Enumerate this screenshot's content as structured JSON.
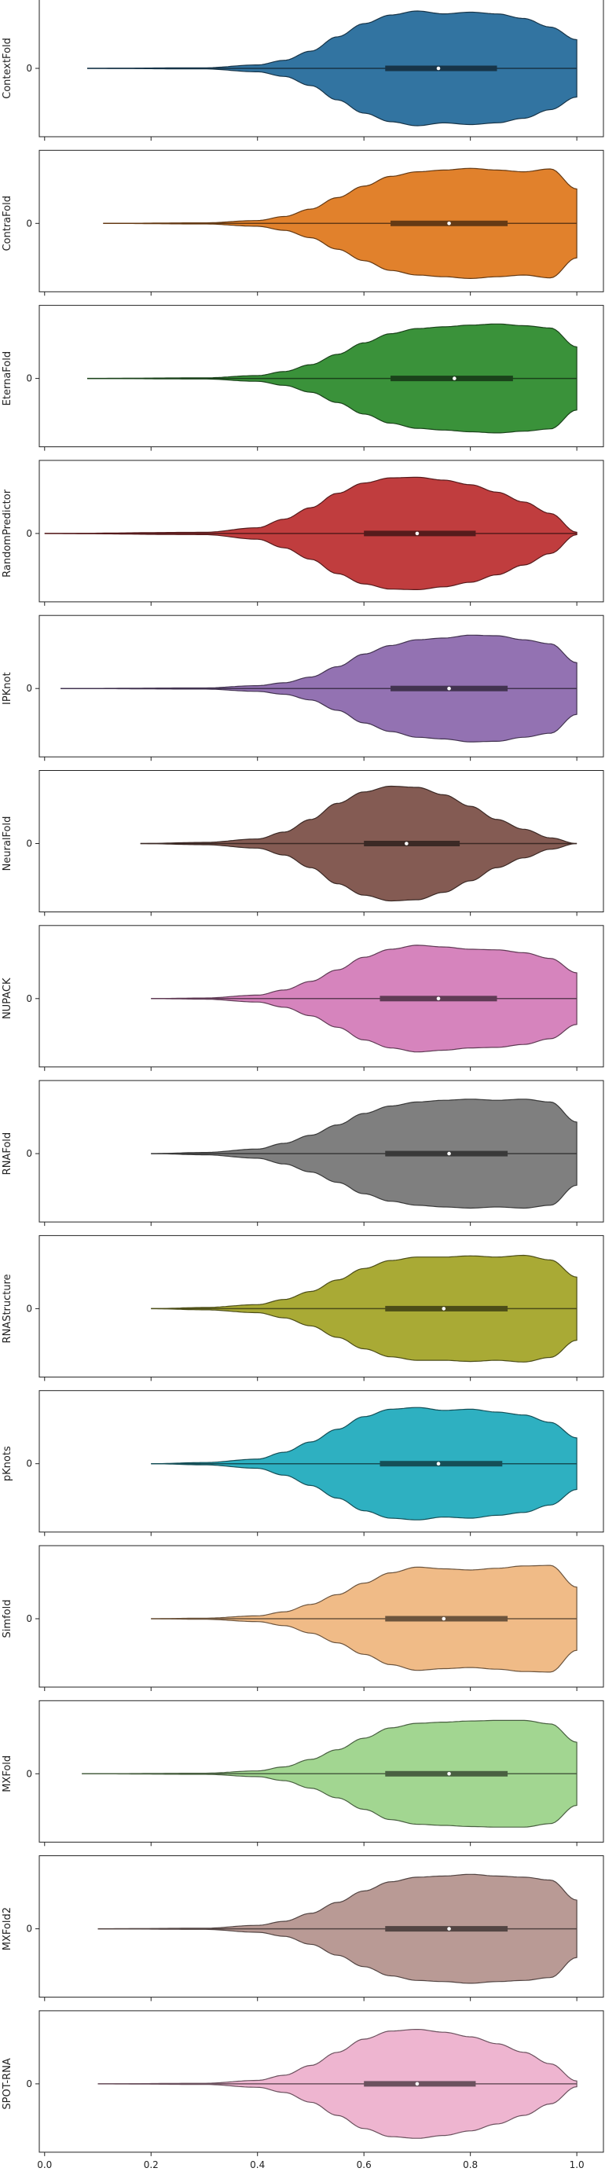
{
  "chart_data": {
    "type": "violin",
    "orientation": "horizontal",
    "xlim": [
      -0.01,
      1.05
    ],
    "x_ticks": [
      "0.0",
      "0.2",
      "0.4",
      "0.6",
      "0.8",
      "1.0"
    ],
    "x_tick_values": [
      0.0,
      0.2,
      0.4,
      0.6,
      0.8,
      1.0
    ],
    "y_tick_label": "0",
    "shared_x_axis": true,
    "grid": false,
    "panels": [
      {
        "name": "ContextFold",
        "color": "#3274a1",
        "min": 0.08,
        "max": 1.0,
        "q1": 0.64,
        "median": 0.74,
        "q3": 0.85,
        "density": [
          [
            0.08,
            0
          ],
          [
            0.3,
            0.01
          ],
          [
            0.4,
            0.06
          ],
          [
            0.45,
            0.14
          ],
          [
            0.5,
            0.3
          ],
          [
            0.55,
            0.55
          ],
          [
            0.6,
            0.78
          ],
          [
            0.65,
            0.93
          ],
          [
            0.7,
            1.0
          ],
          [
            0.75,
            0.95
          ],
          [
            0.8,
            0.98
          ],
          [
            0.85,
            0.95
          ],
          [
            0.9,
            0.87
          ],
          [
            0.95,
            0.72
          ],
          [
            1.0,
            0.5
          ]
        ]
      },
      {
        "name": "ContraFold",
        "color": "#e1812c",
        "min": 0.11,
        "max": 1.0,
        "q1": 0.65,
        "median": 0.76,
        "q3": 0.87,
        "density": [
          [
            0.11,
            0
          ],
          [
            0.3,
            0.01
          ],
          [
            0.4,
            0.05
          ],
          [
            0.45,
            0.12
          ],
          [
            0.5,
            0.25
          ],
          [
            0.55,
            0.45
          ],
          [
            0.6,
            0.65
          ],
          [
            0.65,
            0.82
          ],
          [
            0.7,
            0.9
          ],
          [
            0.75,
            0.93
          ],
          [
            0.8,
            0.96
          ],
          [
            0.85,
            0.93
          ],
          [
            0.9,
            0.9
          ],
          [
            0.95,
            0.95
          ],
          [
            1.0,
            0.6
          ]
        ]
      },
      {
        "name": "EternaFold",
        "color": "#3a923a",
        "min": 0.08,
        "max": 1.0,
        "q1": 0.65,
        "median": 0.77,
        "q3": 0.88,
        "density": [
          [
            0.08,
            0
          ],
          [
            0.3,
            0.01
          ],
          [
            0.4,
            0.05
          ],
          [
            0.45,
            0.12
          ],
          [
            0.5,
            0.24
          ],
          [
            0.55,
            0.42
          ],
          [
            0.6,
            0.62
          ],
          [
            0.65,
            0.78
          ],
          [
            0.7,
            0.87
          ],
          [
            0.75,
            0.9
          ],
          [
            0.8,
            0.93
          ],
          [
            0.85,
            0.95
          ],
          [
            0.9,
            0.92
          ],
          [
            0.95,
            0.88
          ],
          [
            1.0,
            0.55
          ]
        ]
      },
      {
        "name": "RandomPredictor",
        "color": "#c03d3e",
        "min": 0.0,
        "max": 1.0,
        "q1": 0.6,
        "median": 0.7,
        "q3": 0.81,
        "density": [
          [
            0.0,
            0
          ],
          [
            0.3,
            0.02
          ],
          [
            0.4,
            0.1
          ],
          [
            0.45,
            0.25
          ],
          [
            0.5,
            0.45
          ],
          [
            0.55,
            0.7
          ],
          [
            0.6,
            0.88
          ],
          [
            0.65,
            0.97
          ],
          [
            0.7,
            0.98
          ],
          [
            0.75,
            0.93
          ],
          [
            0.8,
            0.85
          ],
          [
            0.85,
            0.72
          ],
          [
            0.9,
            0.55
          ],
          [
            0.95,
            0.35
          ],
          [
            1.0,
            0.02
          ]
        ]
      },
      {
        "name": "IPKnot",
        "color": "#9372b2",
        "min": 0.03,
        "max": 1.0,
        "q1": 0.65,
        "median": 0.76,
        "q3": 0.87,
        "density": [
          [
            0.03,
            0
          ],
          [
            0.3,
            0.01
          ],
          [
            0.4,
            0.05
          ],
          [
            0.45,
            0.1
          ],
          [
            0.5,
            0.2
          ],
          [
            0.55,
            0.38
          ],
          [
            0.6,
            0.6
          ],
          [
            0.65,
            0.75
          ],
          [
            0.7,
            0.85
          ],
          [
            0.75,
            0.88
          ],
          [
            0.8,
            0.93
          ],
          [
            0.85,
            0.92
          ],
          [
            0.9,
            0.85
          ],
          [
            0.95,
            0.78
          ],
          [
            1.0,
            0.45
          ]
        ]
      },
      {
        "name": "NeuralFold",
        "color": "#845b53",
        "min": 0.18,
        "max": 1.0,
        "q1": 0.6,
        "median": 0.68,
        "q3": 0.78,
        "density": [
          [
            0.18,
            0
          ],
          [
            0.3,
            0.02
          ],
          [
            0.4,
            0.08
          ],
          [
            0.45,
            0.2
          ],
          [
            0.5,
            0.42
          ],
          [
            0.55,
            0.7
          ],
          [
            0.6,
            0.9
          ],
          [
            0.65,
            1.0
          ],
          [
            0.7,
            0.98
          ],
          [
            0.75,
            0.85
          ],
          [
            0.8,
            0.65
          ],
          [
            0.85,
            0.42
          ],
          [
            0.9,
            0.25
          ],
          [
            0.95,
            0.1
          ],
          [
            1.0,
            0.0
          ]
        ]
      },
      {
        "name": "NUPACK",
        "color": "#d684bd",
        "min": 0.2,
        "max": 1.0,
        "q1": 0.63,
        "median": 0.74,
        "q3": 0.85,
        "density": [
          [
            0.2,
            0
          ],
          [
            0.3,
            0.01
          ],
          [
            0.4,
            0.06
          ],
          [
            0.45,
            0.15
          ],
          [
            0.5,
            0.3
          ],
          [
            0.55,
            0.5
          ],
          [
            0.6,
            0.72
          ],
          [
            0.65,
            0.86
          ],
          [
            0.7,
            0.93
          ],
          [
            0.75,
            0.9
          ],
          [
            0.8,
            0.86
          ],
          [
            0.85,
            0.85
          ],
          [
            0.9,
            0.8
          ],
          [
            0.95,
            0.7
          ],
          [
            1.0,
            0.45
          ]
        ]
      },
      {
        "name": "RNAFold",
        "color": "#7f7f7f",
        "min": 0.2,
        "max": 1.0,
        "q1": 0.64,
        "median": 0.76,
        "q3": 0.87,
        "density": [
          [
            0.2,
            0
          ],
          [
            0.3,
            0.02
          ],
          [
            0.4,
            0.08
          ],
          [
            0.45,
            0.18
          ],
          [
            0.5,
            0.32
          ],
          [
            0.55,
            0.5
          ],
          [
            0.6,
            0.7
          ],
          [
            0.65,
            0.83
          ],
          [
            0.7,
            0.9
          ],
          [
            0.75,
            0.93
          ],
          [
            0.8,
            0.95
          ],
          [
            0.85,
            0.93
          ],
          [
            0.9,
            0.95
          ],
          [
            0.95,
            0.9
          ],
          [
            1.0,
            0.55
          ]
        ]
      },
      {
        "name": "RNAStructure",
        "color": "#a9aa35",
        "min": 0.2,
        "max": 1.0,
        "q1": 0.64,
        "median": 0.75,
        "q3": 0.87,
        "density": [
          [
            0.2,
            0
          ],
          [
            0.3,
            0.02
          ],
          [
            0.4,
            0.07
          ],
          [
            0.45,
            0.16
          ],
          [
            0.5,
            0.3
          ],
          [
            0.55,
            0.5
          ],
          [
            0.6,
            0.7
          ],
          [
            0.65,
            0.84
          ],
          [
            0.7,
            0.9
          ],
          [
            0.75,
            0.9
          ],
          [
            0.8,
            0.92
          ],
          [
            0.85,
            0.9
          ],
          [
            0.9,
            0.93
          ],
          [
            0.95,
            0.85
          ],
          [
            1.0,
            0.55
          ]
        ]
      },
      {
        "name": "pKnots",
        "color": "#2eb0c1",
        "min": 0.2,
        "max": 1.0,
        "q1": 0.63,
        "median": 0.74,
        "q3": 0.86,
        "density": [
          [
            0.2,
            0
          ],
          [
            0.3,
            0.02
          ],
          [
            0.4,
            0.08
          ],
          [
            0.45,
            0.2
          ],
          [
            0.5,
            0.38
          ],
          [
            0.55,
            0.6
          ],
          [
            0.6,
            0.82
          ],
          [
            0.65,
            0.95
          ],
          [
            0.7,
            0.98
          ],
          [
            0.75,
            0.93
          ],
          [
            0.8,
            0.95
          ],
          [
            0.85,
            0.9
          ],
          [
            0.9,
            0.85
          ],
          [
            0.95,
            0.72
          ],
          [
            1.0,
            0.45
          ]
        ]
      },
      {
        "name": "Simfold",
        "color": "#f0bb87",
        "min": 0.2,
        "max": 1.0,
        "q1": 0.64,
        "median": 0.75,
        "q3": 0.87,
        "density": [
          [
            0.2,
            0
          ],
          [
            0.3,
            0.01
          ],
          [
            0.4,
            0.05
          ],
          [
            0.45,
            0.12
          ],
          [
            0.5,
            0.25
          ],
          [
            0.55,
            0.42
          ],
          [
            0.6,
            0.62
          ],
          [
            0.65,
            0.8
          ],
          [
            0.7,
            0.9
          ],
          [
            0.75,
            0.87
          ],
          [
            0.8,
            0.85
          ],
          [
            0.85,
            0.88
          ],
          [
            0.9,
            0.92
          ],
          [
            0.95,
            0.93
          ],
          [
            1.0,
            0.55
          ]
        ]
      },
      {
        "name": "MXFold",
        "color": "#a2d691",
        "min": 0.07,
        "max": 1.0,
        "q1": 0.64,
        "median": 0.76,
        "q3": 0.87,
        "density": [
          [
            0.07,
            0
          ],
          [
            0.3,
            0.01
          ],
          [
            0.4,
            0.05
          ],
          [
            0.45,
            0.12
          ],
          [
            0.5,
            0.25
          ],
          [
            0.55,
            0.42
          ],
          [
            0.6,
            0.62
          ],
          [
            0.65,
            0.8
          ],
          [
            0.7,
            0.88
          ],
          [
            0.75,
            0.9
          ],
          [
            0.8,
            0.92
          ],
          [
            0.85,
            0.93
          ],
          [
            0.9,
            0.93
          ],
          [
            0.95,
            0.87
          ],
          [
            1.0,
            0.55
          ]
        ]
      },
      {
        "name": "MXFold2",
        "color": "#b99a95",
        "min": 0.1,
        "max": 1.0,
        "q1": 0.64,
        "median": 0.76,
        "q3": 0.87,
        "density": [
          [
            0.1,
            0
          ],
          [
            0.3,
            0.01
          ],
          [
            0.4,
            0.06
          ],
          [
            0.45,
            0.13
          ],
          [
            0.5,
            0.27
          ],
          [
            0.55,
            0.46
          ],
          [
            0.6,
            0.66
          ],
          [
            0.65,
            0.82
          ],
          [
            0.7,
            0.9
          ],
          [
            0.75,
            0.92
          ],
          [
            0.8,
            0.95
          ],
          [
            0.85,
            0.92
          ],
          [
            0.9,
            0.9
          ],
          [
            0.95,
            0.85
          ],
          [
            1.0,
            0.5
          ]
        ]
      },
      {
        "name": "SPOT-RNA",
        "color": "#eeb5d0",
        "min": 0.1,
        "max": 1.0,
        "q1": 0.6,
        "median": 0.7,
        "q3": 0.81,
        "density": [
          [
            0.1,
            0
          ],
          [
            0.3,
            0.01
          ],
          [
            0.4,
            0.06
          ],
          [
            0.45,
            0.15
          ],
          [
            0.5,
            0.32
          ],
          [
            0.55,
            0.55
          ],
          [
            0.6,
            0.78
          ],
          [
            0.65,
            0.92
          ],
          [
            0.7,
            0.95
          ],
          [
            0.75,
            0.9
          ],
          [
            0.8,
            0.82
          ],
          [
            0.85,
            0.7
          ],
          [
            0.9,
            0.55
          ],
          [
            0.95,
            0.35
          ],
          [
            1.0,
            0.05
          ]
        ]
      }
    ]
  }
}
